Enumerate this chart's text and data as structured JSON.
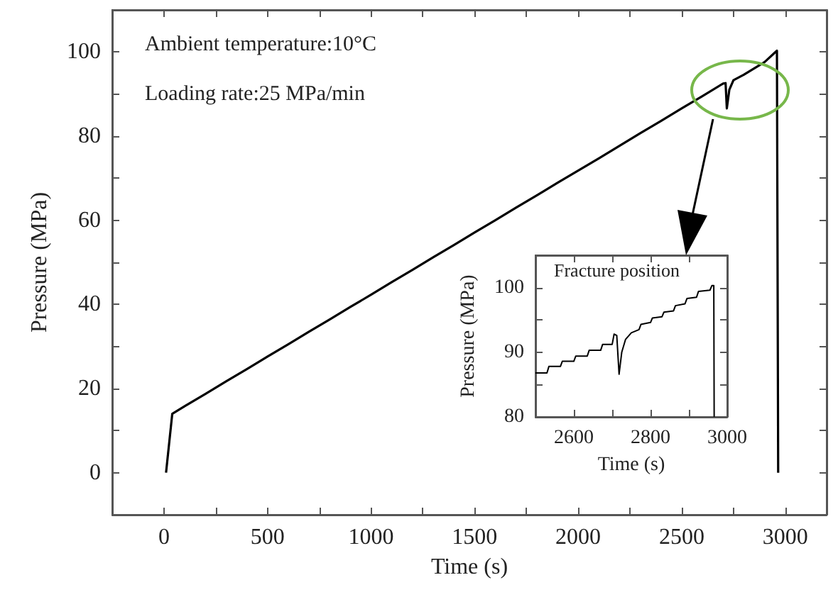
{
  "chart_data": [
    {
      "type": "line",
      "xlabel": "Time (s)",
      "ylabel": "Pressure (MPa)",
      "annotations": [
        "Ambient temperature:10°C",
        "Loading rate:25 MPa/min"
      ],
      "xlim": [
        -250,
        3200
      ],
      "ylim": [
        -10,
        110
      ],
      "xticks": [
        0,
        {
          "value": 250,
          "label": null
        },
        500,
        {
          "value": 750,
          "label": null
        },
        1000,
        {
          "value": 1250,
          "label": null
        },
        1500,
        {
          "value": 1750,
          "label": null
        },
        2000,
        {
          "value": 2250,
          "label": null
        },
        2500,
        {
          "value": 2750,
          "label": null
        },
        3000
      ],
      "yticks": [
        0,
        {
          "value": 10,
          "label": null
        },
        20,
        {
          "value": 30,
          "label": null
        },
        40,
        {
          "value": 50,
          "label": null
        },
        60,
        {
          "value": 70,
          "label": null
        },
        80,
        {
          "value": 90,
          "label": null
        },
        100
      ],
      "grid": false,
      "marker": "none",
      "line_style": "solid",
      "x": [
        10,
        40,
        100,
        200,
        300,
        400,
        500,
        600,
        700,
        800,
        900,
        1000,
        1100,
        1200,
        1300,
        1400,
        1500,
        1600,
        1700,
        1800,
        1900,
        2000,
        2100,
        2200,
        2300,
        2400,
        2500,
        2600,
        2700,
        2712,
        2718,
        2730,
        2750,
        2800,
        2900,
        2960,
        2966
      ],
      "series": [
        {
          "color": "#000000",
          "values": [
            0,
            14,
            15.8,
            18.7,
            21.7,
            24.6,
            27.6,
            30.5,
            33.5,
            36.4,
            39.4,
            42.3,
            45.3,
            48.2,
            51.2,
            54.1,
            57.1,
            60,
            63,
            65.9,
            68.9,
            71.8,
            74.7,
            77.7,
            80.7,
            83.6,
            86.6,
            89.5,
            92.5,
            92.6,
            86.6,
            91,
            93.3,
            94.6,
            97.6,
            100.3,
            0
          ]
        }
      ]
    },
    {
      "type": "line",
      "xlabel": "Time (s)",
      "ylabel": "Pressure (MPa)",
      "annotations": [
        "Fracture position"
      ],
      "xlim": [
        2500,
        3000
      ],
      "ylim": [
        80,
        105
      ],
      "xticks": [
        {
          "value": 2500,
          "label": null
        },
        2600,
        {
          "value": 2700,
          "label": null
        },
        2800,
        {
          "value": 2900,
          "label": null
        },
        3000
      ],
      "yticks": [
        80,
        {
          "value": 85,
          "label": null
        },
        90,
        {
          "value": 95,
          "label": null
        },
        100
      ],
      "grid": false,
      "marker": "none",
      "line_style": "solid",
      "x": [
        2500,
        2530,
        2535,
        2565,
        2570,
        2600,
        2605,
        2635,
        2640,
        2670,
        2675,
        2700,
        2705,
        2712,
        2718,
        2725,
        2735,
        2750,
        2770,
        2775,
        2800,
        2805,
        2830,
        2835,
        2860,
        2865,
        2890,
        2895,
        2920,
        2925,
        2955,
        2960,
        2965,
        2966
      ],
      "series": [
        {
          "color": "#000000",
          "values": [
            86.8,
            86.8,
            87.8,
            87.8,
            88.6,
            88.6,
            89.4,
            89.4,
            90.3,
            90.3,
            91.2,
            91.2,
            92.8,
            92.6,
            86.6,
            90,
            92,
            93,
            93.5,
            94.3,
            94.6,
            95.3,
            95.5,
            96.2,
            96.4,
            97.2,
            97.5,
            98.3,
            98.5,
            99.4,
            99.6,
            100.3,
            100.3,
            80
          ]
        }
      ]
    }
  ]
}
